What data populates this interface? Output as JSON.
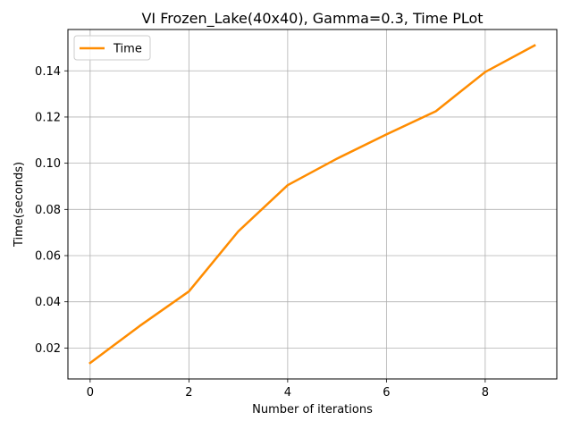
{
  "chart_data": {
    "type": "line",
    "title": "VI Frozen_Lake(40x40), Gamma=0.3, Time PLot",
    "xlabel": "Number of iterations",
    "ylabel": "Time(seconds)",
    "x": [
      0,
      1,
      2,
      3,
      4,
      5,
      6,
      7,
      8,
      9
    ],
    "series": [
      {
        "name": "Time",
        "color": "#ff8c00",
        "values": [
          0.0135,
          0.0295,
          0.0445,
          0.0705,
          0.0905,
          0.102,
          0.1125,
          0.1225,
          0.1395,
          0.151
        ]
      }
    ],
    "xlim": [
      -0.45,
      9.45
    ],
    "ylim": [
      0.0066,
      0.1579
    ],
    "xticks": [
      0,
      2,
      4,
      6,
      8
    ],
    "xtick_labels": [
      "0",
      "2",
      "4",
      "6",
      "8"
    ],
    "yticks": [
      0.02,
      0.04,
      0.06,
      0.08,
      0.1,
      0.12,
      0.14
    ],
    "ytick_labels": [
      "0.02",
      "0.04",
      "0.06",
      "0.08",
      "0.10",
      "0.12",
      "0.14"
    ],
    "grid": true,
    "legend_position": "top-left"
  }
}
